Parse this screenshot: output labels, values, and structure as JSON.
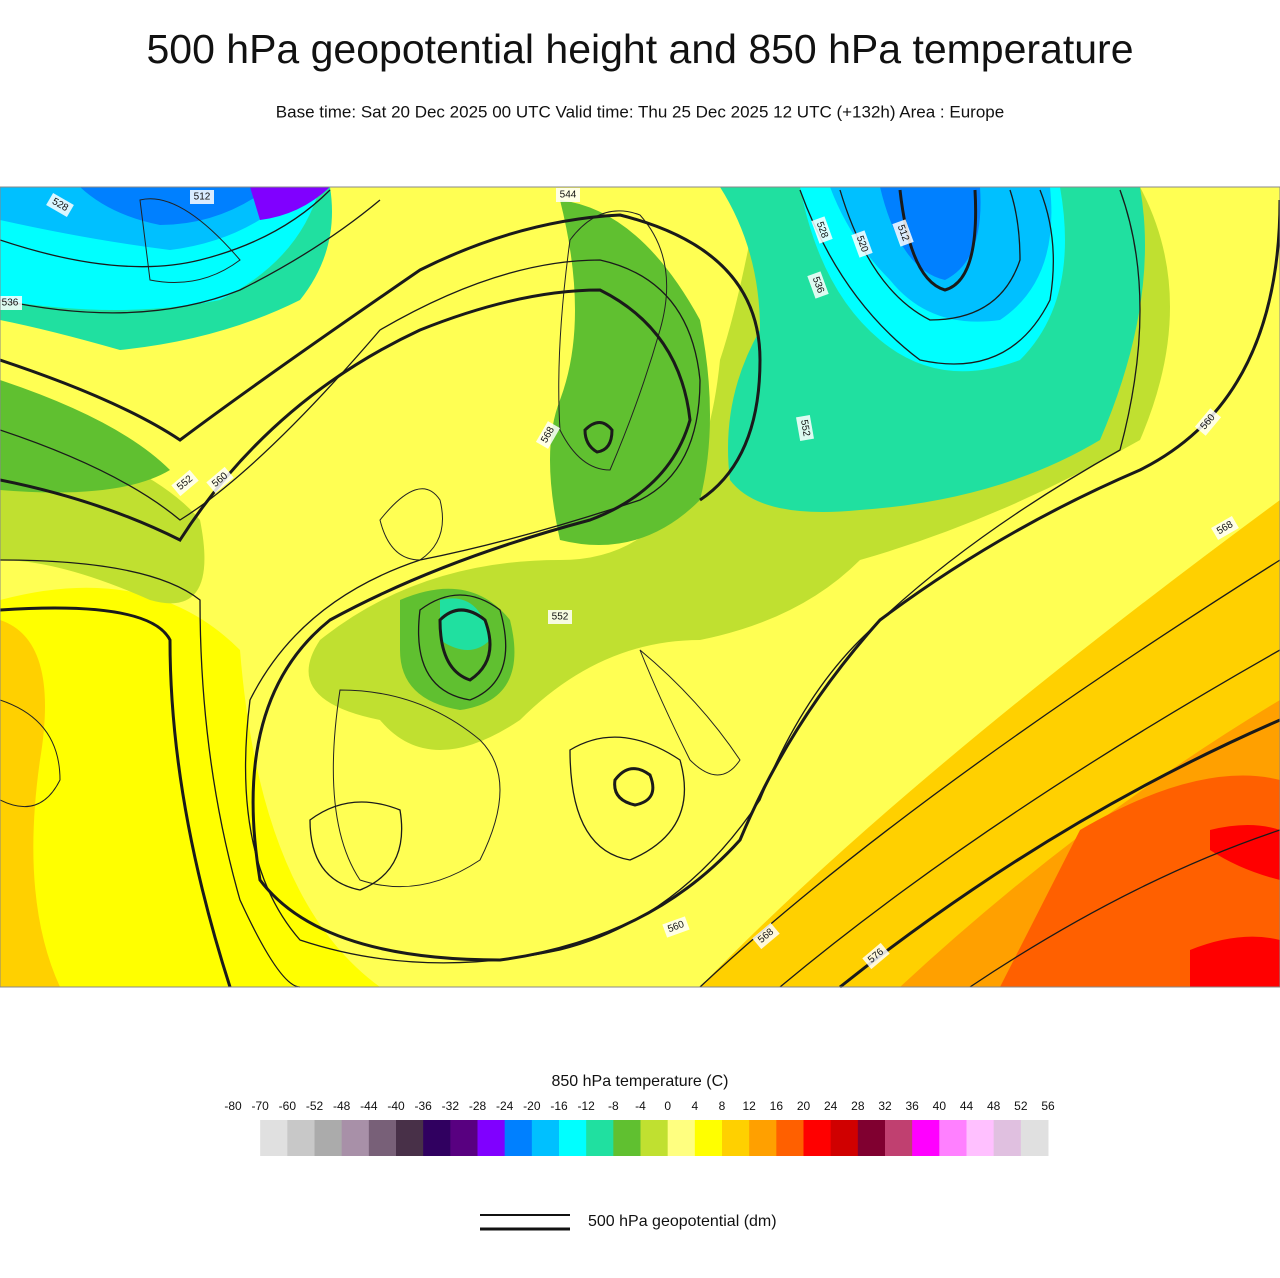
{
  "header": {
    "title": "500 hPa geopotential height and 850 hPa temperature",
    "subtitle": "Base time: Sat 20 Dec 2025 00 UTC Valid time: Thu 25 Dec 2025 12 UTC (+132h) Area : Europe"
  },
  "map": {
    "contour_labels": [
      "528",
      "512",
      "536",
      "544",
      "552",
      "560",
      "568",
      "552",
      "552",
      "560",
      "568",
      "560",
      "568",
      "576",
      "528",
      "520",
      "512",
      "536"
    ]
  },
  "colorbar": {
    "title": "850 hPa temperature (C)",
    "ticks": [
      -80,
      -70,
      -60,
      -52,
      -48,
      -44,
      -40,
      -36,
      -32,
      -28,
      -24,
      -20,
      -16,
      -12,
      -8,
      -4,
      0,
      4,
      8,
      12,
      16,
      20,
      24,
      28,
      32,
      36,
      40,
      44,
      48,
      52,
      56
    ],
    "colors": [
      "#e0e0e0",
      "#c8c8c8",
      "#ababab",
      "#a890a8",
      "#786078",
      "#483048",
      "#300060",
      "#580080",
      "#8000ff",
      "#0080ff",
      "#00c0ff",
      "#00ffff",
      "#20e0a0",
      "#60c030",
      "#c0e030",
      "#ffff80",
      "#ffff00",
      "#ffd000",
      "#ffa000",
      "#ff6000",
      "#ff0000",
      "#d00000",
      "#800030",
      "#c04070",
      "#ff00ff",
      "#ff80ff",
      "#ffc0ff",
      "#e0c0e0",
      "#e0e0e0"
    ]
  },
  "legend": {
    "label": "500 hPa geopotential (dm)"
  }
}
